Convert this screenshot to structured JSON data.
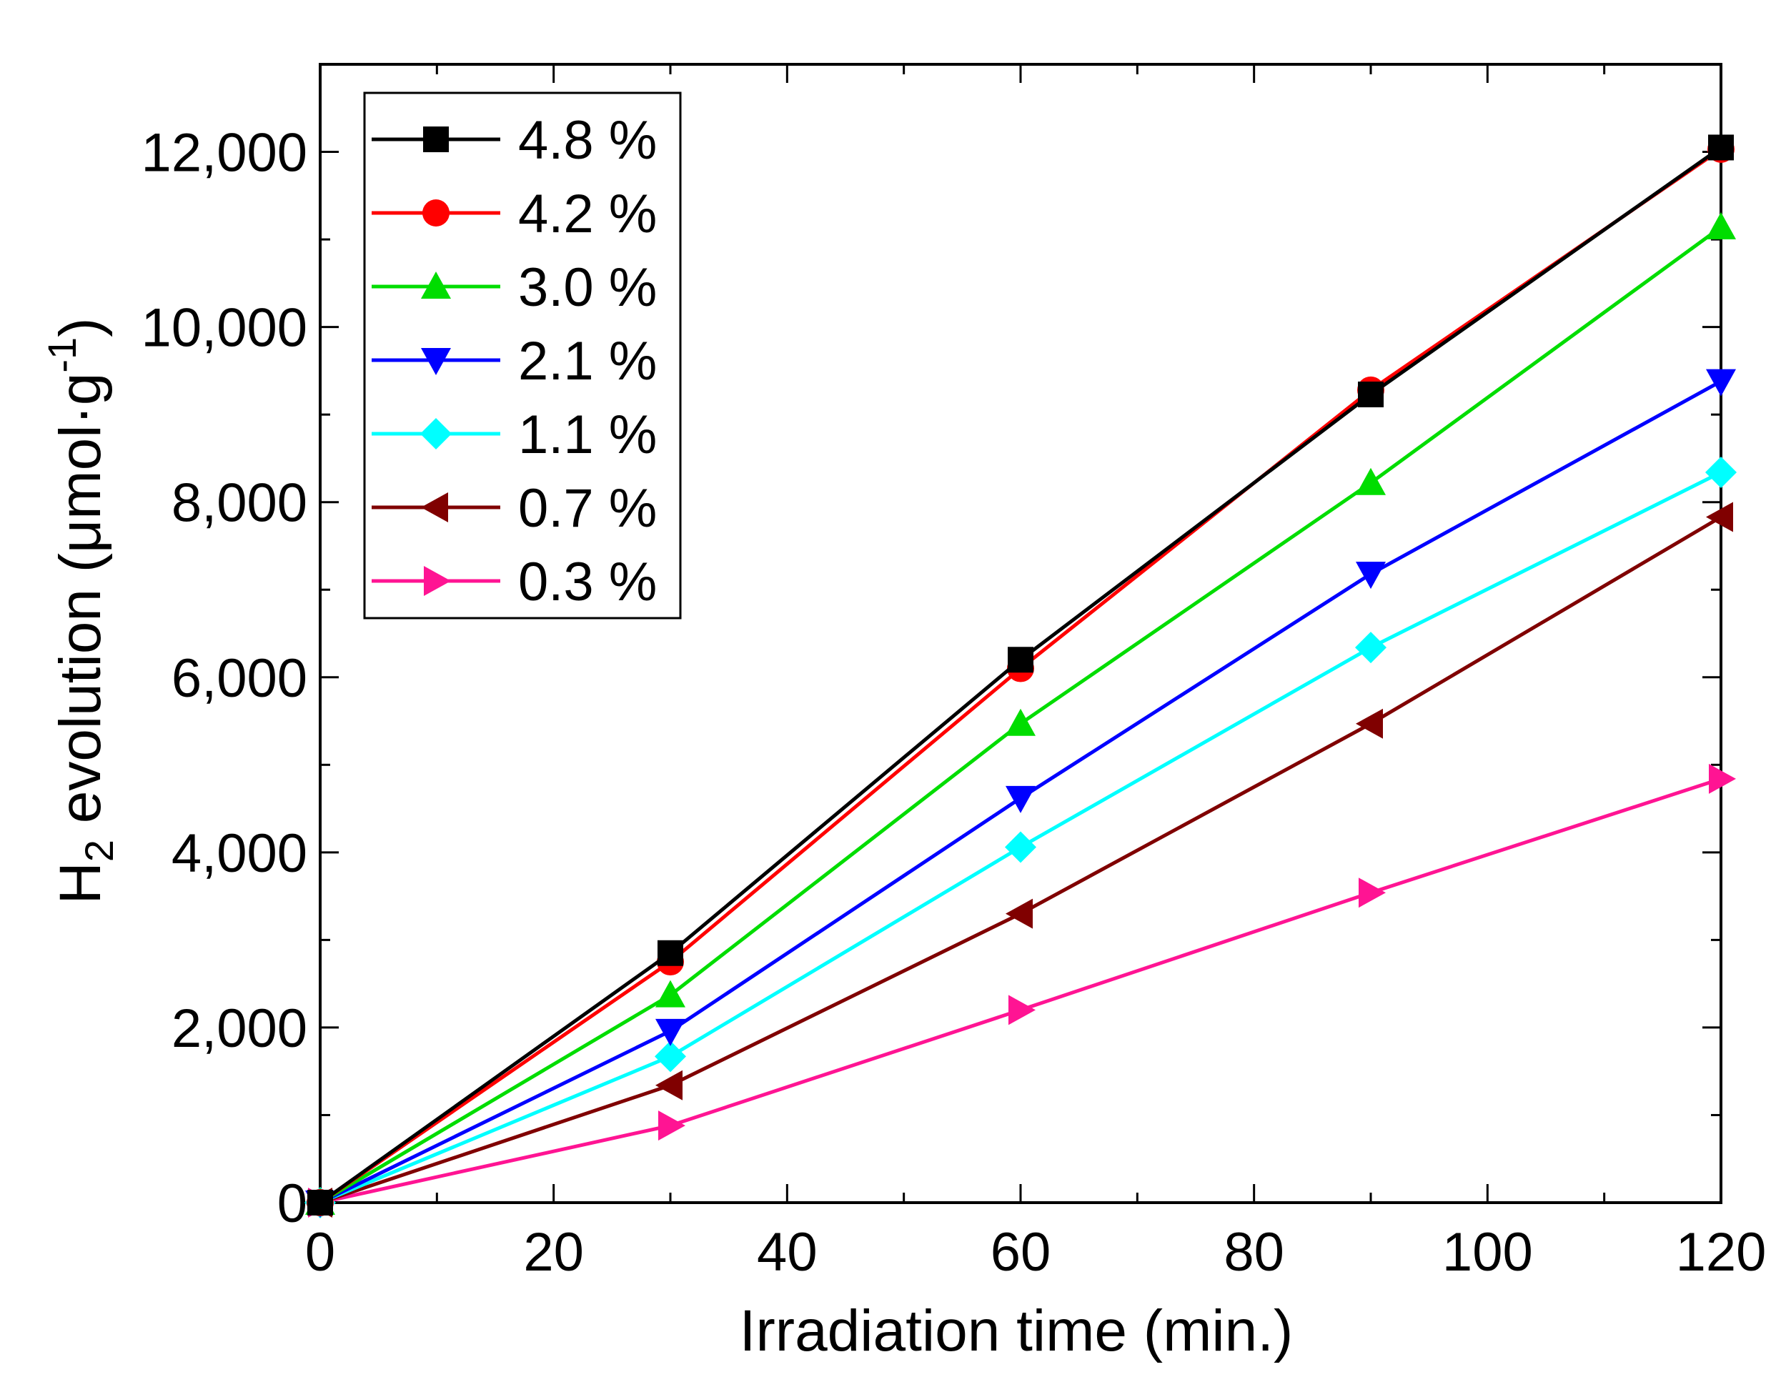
{
  "chart_data": {
    "type": "line",
    "xlabel": "Irradiation time (min.)",
    "ylabel": {
      "prefix": "H",
      "sub": "2",
      "middle": " evolution (μmol·g",
      "sup": "-1",
      "suffix": ")"
    },
    "xlim": [
      0,
      120
    ],
    "ylim": [
      0,
      13000
    ],
    "x_ticks": [
      0,
      20,
      40,
      60,
      80,
      100,
      120
    ],
    "x_tick_labels": [
      "0",
      "20",
      "40",
      "60",
      "80",
      "100",
      "120"
    ],
    "x_minor_ticks": [
      10,
      30,
      50,
      70,
      90,
      110
    ],
    "y_ticks": [
      0,
      2000,
      4000,
      6000,
      8000,
      10000,
      12000
    ],
    "y_tick_labels": [
      "0",
      "2,000",
      "4,000",
      "6,000",
      "8,000",
      "10,000",
      "12,000"
    ],
    "y_minor_ticks": [
      1000,
      3000,
      5000,
      7000,
      9000,
      11000
    ],
    "grid": false,
    "legend_position": "top-left",
    "x": [
      0,
      30,
      60,
      90,
      120
    ],
    "series": [
      {
        "name": "4.8 %",
        "color": "#000000",
        "marker": "square",
        "values": [
          0,
          2850,
          6200,
          9230,
          12050
        ]
      },
      {
        "name": "4.2 %",
        "color": "#ff0000",
        "marker": "circle",
        "values": [
          0,
          2750,
          6100,
          9280,
          12030
        ]
      },
      {
        "name": "3.0 %",
        "color": "#00dd00",
        "marker": "triangle-up",
        "values": [
          0,
          2370,
          5470,
          8220,
          11140
        ]
      },
      {
        "name": "2.1 %",
        "color": "#0000ff",
        "marker": "triangle-down",
        "values": [
          0,
          1960,
          4620,
          7180,
          9380
        ]
      },
      {
        "name": "1.1 %",
        "color": "#00ffff",
        "marker": "diamond",
        "values": [
          0,
          1670,
          4060,
          6340,
          8340
        ]
      },
      {
        "name": "0.7 %",
        "color": "#800000",
        "marker": "triangle-left",
        "values": [
          0,
          1340,
          3300,
          5470,
          7830
        ]
      },
      {
        "name": "0.3 %",
        "color": "#ff1493",
        "marker": "triangle-right",
        "values": [
          0,
          880,
          2200,
          3540,
          4840
        ]
      }
    ]
  }
}
